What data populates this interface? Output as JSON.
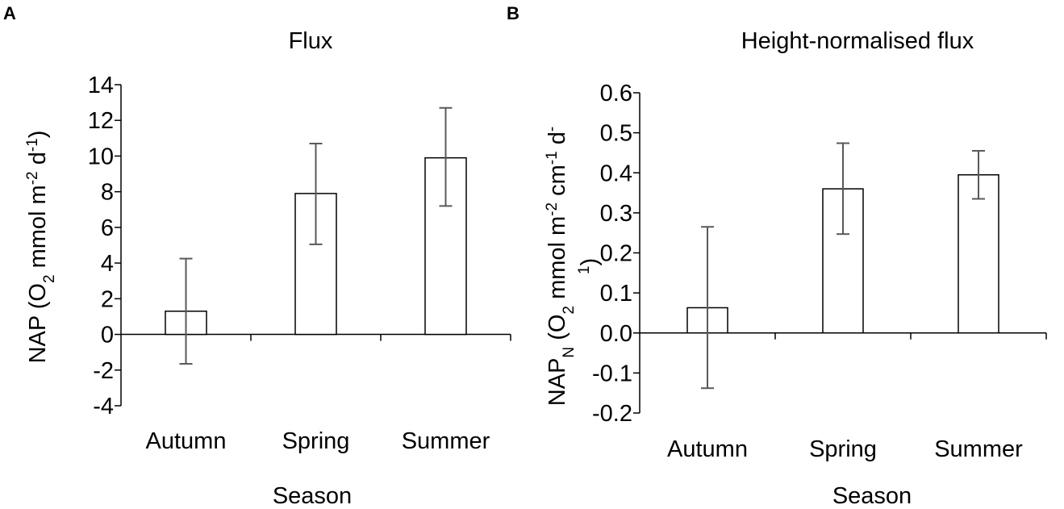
{
  "chart_data": [
    {
      "type": "bar",
      "panel_label": "A",
      "title": "Flux",
      "xlabel": "Season",
      "ylabel": {
        "parts": [
          {
            "text": "NAP (O"
          },
          {
            "text": "2",
            "style": "sub"
          },
          {
            "text": " mmol m"
          },
          {
            "text": "-2",
            "style": "sup"
          },
          {
            "text": " d"
          },
          {
            "text": "-1",
            "style": "sup"
          },
          {
            "text": ")"
          }
        ]
      },
      "categories": [
        "Autumn",
        "Spring",
        "Summer"
      ],
      "values": [
        1.3,
        7.9,
        9.9
      ],
      "error_low": [
        -1.65,
        5.05,
        7.2
      ],
      "error_high": [
        4.25,
        10.7,
        12.7
      ],
      "ylim": [
        -4,
        14
      ],
      "yticks": [
        -4,
        -2,
        0,
        2,
        4,
        6,
        8,
        10,
        12,
        14
      ],
      "ytick_labels": [
        "-4",
        "-2",
        "0",
        "2",
        "4",
        "6",
        "8",
        "10",
        "12",
        "14"
      ],
      "grid": false,
      "legend": "none"
    },
    {
      "type": "bar",
      "panel_label": "B",
      "title": "Height-normalised flux",
      "xlabel": "Season",
      "ylabel": {
        "line1": [
          {
            "text": "NAP"
          },
          {
            "text": "N",
            "style": "sub"
          },
          {
            "text": " (O"
          },
          {
            "text": "2",
            "style": "sub"
          },
          {
            "text": " mmol m"
          },
          {
            "text": "-2",
            "style": "sup"
          },
          {
            "text": " cm"
          },
          {
            "text": "-1",
            "style": "sup"
          },
          {
            "text": " d"
          },
          {
            "text": "-",
            "style": "sup"
          }
        ],
        "line2": [
          {
            "text": "1",
            "style": "sup"
          },
          {
            "text": ")"
          }
        ]
      },
      "categories": [
        "Autumn",
        "Spring",
        "Summer"
      ],
      "values": [
        0.063,
        0.36,
        0.395
      ],
      "error_low": [
        -0.138,
        0.247,
        0.335
      ],
      "error_high": [
        0.265,
        0.474,
        0.455
      ],
      "ylim": [
        -0.2,
        0.6
      ],
      "yticks": [
        -0.2,
        -0.1,
        0.0,
        0.1,
        0.2,
        0.3,
        0.4,
        0.5,
        0.6
      ],
      "ytick_labels": [
        "-0.2",
        "-0.1",
        "0.0",
        "0.1",
        "0.2",
        "0.3",
        "0.4",
        "0.5",
        "0.6"
      ],
      "grid": false,
      "legend": "none"
    }
  ]
}
